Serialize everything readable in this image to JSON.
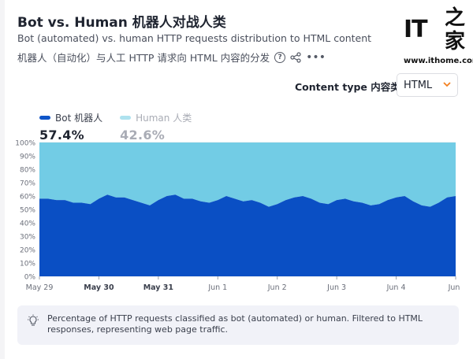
{
  "header": {
    "title": "Bot vs. Human  机器人对战人类",
    "subtitle_en": "Bot (automated) vs. human HTTP requests distribution to HTML content",
    "subtitle_zh": "机器人（自动化）与人工 HTTP 请求向 HTML 内容的分发"
  },
  "watermark": {
    "logo_text": "IT",
    "logo_zh": "之家",
    "url": "www.ithome.com"
  },
  "controls": {
    "content_type_label": "Content type  内容类型",
    "content_type_value": "HTML"
  },
  "legend": [
    {
      "label": "Bot  机器人",
      "value": "57.4%",
      "color": "#0f55c8",
      "value_color": "#1f2430",
      "label_color": "#3a3f4c"
    },
    {
      "label": "Human  人类",
      "value": "42.6%",
      "color": "#aee2ef",
      "value_color": "#a9acb5",
      "label_color": "#a9acb5"
    }
  ],
  "info": {
    "text": "Percentage of HTTP requests classified as bot (automated) or human. Filtered to HTML responses, representing web page traffic."
  },
  "colors": {
    "bot": "#0a4fc4",
    "human": "#72cce5",
    "accent": "#f38020"
  },
  "chart_data": {
    "type": "area",
    "stacked": true,
    "x_ticks": [
      "May 29",
      "May 30",
      "May 31",
      "Jun 1",
      "Jun 2",
      "Jun 3",
      "Jun 4",
      "Jun"
    ],
    "x_tick_bold": [
      false,
      true,
      true,
      false,
      false,
      false,
      false,
      false
    ],
    "y_ticks": [
      "0%",
      "10%",
      "20%",
      "30%",
      "40%",
      "50%",
      "60%",
      "70%",
      "80%",
      "90%",
      "100%"
    ],
    "ylim": [
      0,
      100
    ],
    "x_range": [
      0,
      7
    ],
    "series": [
      {
        "name": "Bot  机器人",
        "x": [
          0,
          0.143,
          0.286,
          0.429,
          0.571,
          0.714,
          0.857,
          1.0,
          1.143,
          1.286,
          1.429,
          1.571,
          1.714,
          1.857,
          2.0,
          2.143,
          2.286,
          2.429,
          2.571,
          2.714,
          2.857,
          3.0,
          3.143,
          3.286,
          3.429,
          3.571,
          3.714,
          3.857,
          4.0,
          4.143,
          4.286,
          4.429,
          4.571,
          4.714,
          4.857,
          5.0,
          5.143,
          5.286,
          5.429,
          5.571,
          5.714,
          5.857,
          6.0,
          6.143,
          6.286,
          6.429,
          6.571,
          6.714,
          6.857,
          7.0
        ],
        "values": [
          58,
          58,
          57,
          57,
          55,
          55,
          54,
          58,
          61,
          59,
          59,
          57,
          55,
          53,
          57,
          60,
          61,
          58,
          58,
          56,
          55,
          57,
          60,
          58,
          56,
          57,
          55,
          52,
          54,
          57,
          59,
          60,
          58,
          55,
          54,
          57,
          58,
          56,
          55,
          53,
          54,
          57,
          59,
          60,
          56,
          53,
          52,
          55,
          59,
          60
        ]
      },
      {
        "name": "Human  人类",
        "x": [
          0,
          0.143,
          0.286,
          0.429,
          0.571,
          0.714,
          0.857,
          1.0,
          1.143,
          1.286,
          1.429,
          1.571,
          1.714,
          1.857,
          2.0,
          2.143,
          2.286,
          2.429,
          2.571,
          2.714,
          2.857,
          3.0,
          3.143,
          3.286,
          3.429,
          3.571,
          3.714,
          3.857,
          4.0,
          4.143,
          4.286,
          4.429,
          4.571,
          4.714,
          4.857,
          5.0,
          5.143,
          5.286,
          5.429,
          5.571,
          5.714,
          5.857,
          6.0,
          6.143,
          6.286,
          6.429,
          6.571,
          6.714,
          6.857,
          7.0
        ],
        "values": [
          42,
          42,
          43,
          43,
          45,
          45,
          46,
          42,
          39,
          41,
          41,
          43,
          45,
          47,
          43,
          40,
          39,
          42,
          42,
          44,
          45,
          43,
          40,
          42,
          44,
          43,
          45,
          48,
          46,
          43,
          41,
          40,
          42,
          45,
          46,
          43,
          42,
          44,
          45,
          47,
          46,
          43,
          41,
          40,
          44,
          47,
          48,
          45,
          41,
          40
        ]
      }
    ]
  }
}
